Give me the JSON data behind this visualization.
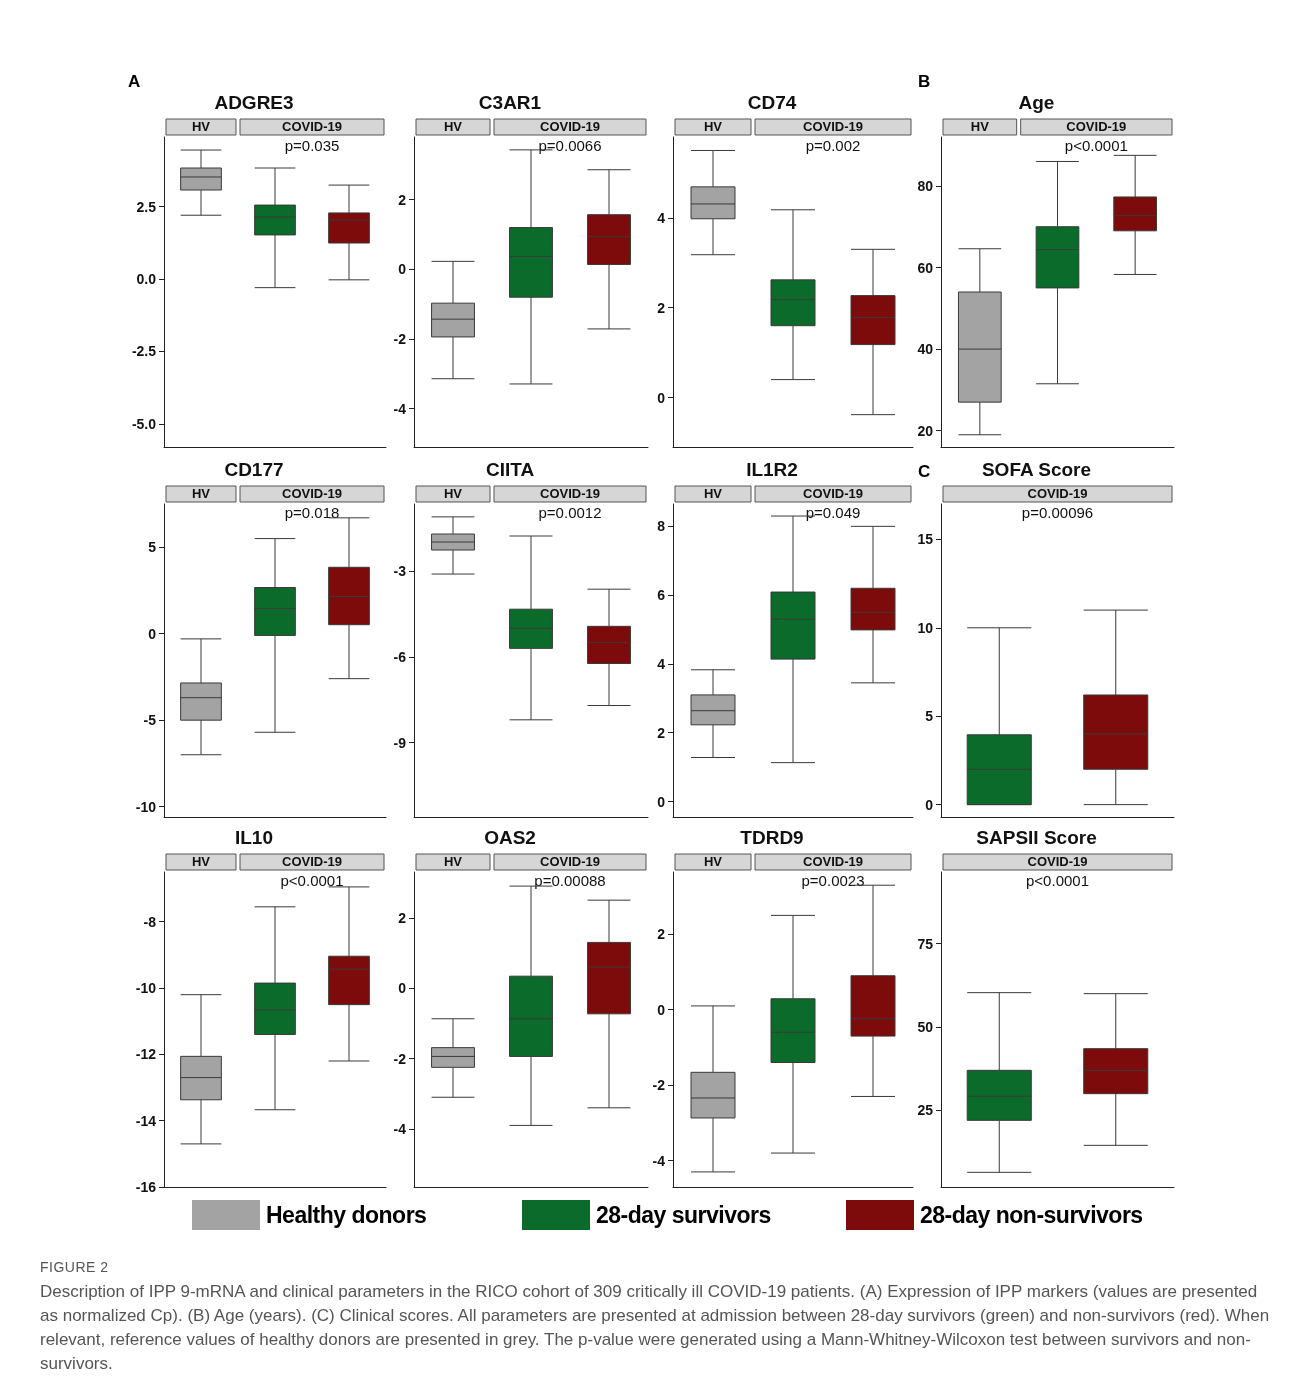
{
  "chart_data": [
    {
      "type": "box",
      "title": "ADGRE3",
      "subtitle": "p=0.035",
      "annotations": [
        "HV",
        "COVID-19"
      ],
      "categories": [
        null,
        null,
        null
      ],
      "tick_labels": "y",
      "legend": "bottom",
      "ylim": [
        -5.8,
        4.9
      ],
      "yticks": [
        {
          "value": -5,
          "label": "-5.0"
        },
        -2.5,
        {
          "value": 0,
          "label": "0.0"
        },
        2.5
      ],
      "series": [
        {
          "name": "Healthy donors",
          "color": "#a3a3a3",
          "boxes": [
            {
              "low": 2.2,
              "q1": 3.07,
              "median": 3.52,
              "q3": 3.83,
              "high": 4.45
            },
            null,
            null
          ]
        },
        {
          "name": "28-day survivors",
          "color": "#0b6b2b",
          "boxes": [
            null,
            {
              "low": -0.3,
              "q1": 1.52,
              "median": 2.14,
              "q3": 2.55,
              "high": 3.83
            },
            null
          ]
        },
        {
          "name": "28-day non-survivors",
          "color": "#7d0b0b",
          "boxes": [
            null,
            null,
            {
              "low": -0.03,
              "q1": 1.24,
              "median": 2.03,
              "q3": 2.28,
              "high": 3.24
            }
          ]
        }
      ]
    },
    {
      "type": "box",
      "title": "C3AR1",
      "subtitle": "p=0.0066",
      "annotations": [
        "HV",
        "COVID-19"
      ],
      "categories": [
        null,
        null,
        null
      ],
      "tick_labels": "y",
      "ylim": [
        -5.1,
        3.8
      ],
      "yticks": [
        -4,
        -2,
        0,
        2
      ],
      "series": [
        {
          "color": "#a3a3a3",
          "boxes": [
            {
              "low": -3.14,
              "q1": -1.94,
              "median": -1.43,
              "q3": -0.97,
              "high": 0.23
            },
            null,
            null
          ]
        },
        {
          "color": "#0b6b2b",
          "boxes": [
            null,
            {
              "low": -3.29,
              "q1": -0.8,
              "median": 0.37,
              "q3": 1.2,
              "high": 3.43
            },
            null
          ]
        },
        {
          "color": "#7d0b0b",
          "boxes": [
            null,
            null,
            {
              "low": -1.71,
              "q1": 0.14,
              "median": 0.94,
              "q3": 1.57,
              "high": 2.86
            }
          ]
        }
      ]
    },
    {
      "type": "box",
      "title": "CD74",
      "subtitle": "p=0.002",
      "annotations": [
        "HV",
        "COVID-19"
      ],
      "categories": [
        null,
        null,
        null
      ],
      "tick_labels": "y",
      "ylim": [
        -1.1,
        5.8
      ],
      "yticks": [
        0,
        2,
        4
      ],
      "series": [
        {
          "color": "#a3a3a3",
          "boxes": [
            {
              "low": 3.18,
              "q1": 3.98,
              "median": 4.31,
              "q3": 4.69,
              "high": 5.5
            },
            null,
            null
          ]
        },
        {
          "color": "#0b6b2b",
          "boxes": [
            null,
            {
              "low": 0.4,
              "q1": 1.6,
              "median": 2.18,
              "q3": 2.62,
              "high": 4.18
            },
            null
          ]
        },
        {
          "color": "#7d0b0b",
          "boxes": [
            null,
            null,
            {
              "low": -0.38,
              "q1": 1.18,
              "median": 1.78,
              "q3": 2.27,
              "high": 3.3
            }
          ]
        }
      ]
    },
    {
      "type": "box",
      "title": "Age",
      "subtitle": "p<0.0001",
      "annotations": [
        "HV",
        "COVID-19"
      ],
      "categories": [
        null,
        null,
        null
      ],
      "tick_labels": "y",
      "ylim": [
        16,
        92
      ],
      "yticks": [
        20,
        40,
        60,
        80
      ],
      "series": [
        {
          "color": "#a3a3a3",
          "boxes": [
            {
              "low": 19,
              "q1": 27,
              "median": 40,
              "q3": 54,
              "high": 64.6
            },
            null,
            null
          ]
        },
        {
          "color": "#0b6b2b",
          "boxes": [
            null,
            {
              "low": 31.5,
              "q1": 55,
              "median": 64.4,
              "q3": 70,
              "high": 86
            },
            null
          ]
        },
        {
          "color": "#7d0b0b",
          "boxes": [
            null,
            null,
            {
              "low": 58.3,
              "q1": 69,
              "median": 72.7,
              "q3": 77.3,
              "high": 87.5
            }
          ]
        }
      ]
    },
    {
      "type": "box",
      "title": "CD177",
      "subtitle": "p=0.018",
      "annotations": [
        "HV",
        "COVID-19"
      ],
      "categories": [
        null,
        null,
        null
      ],
      "tick_labels": "y",
      "ylim": [
        -10.6,
        7.5
      ],
      "yticks": [
        -10,
        -5,
        0,
        5
      ],
      "series": [
        {
          "color": "#a3a3a3",
          "boxes": [
            {
              "low": -7,
              "q1": -5,
              "median": -3.7,
              "q3": -2.85,
              "high": -0.3
            },
            null,
            null
          ]
        },
        {
          "color": "#0b6b2b",
          "boxes": [
            null,
            {
              "low": -5.7,
              "q1": -0.1,
              "median": 1.45,
              "q3": 2.67,
              "high": 5.5
            },
            null
          ]
        },
        {
          "color": "#7d0b0b",
          "boxes": [
            null,
            null,
            {
              "low": -2.6,
              "q1": 0.52,
              "median": 2.15,
              "q3": 3.84,
              "high": 6.7
            }
          ]
        }
      ]
    },
    {
      "type": "box",
      "title": "CIITA",
      "subtitle": "p=0.0012",
      "annotations": [
        "HV",
        "COVID-19"
      ],
      "categories": [
        null,
        null,
        null
      ],
      "tick_labels": "y",
      "ylim": [
        -11.6,
        -0.65
      ],
      "yticks": [
        -9,
        -6,
        -3
      ],
      "series": [
        {
          "color": "#a3a3a3",
          "boxes": [
            {
              "low": -3.1,
              "q1": -2.26,
              "median": -1.98,
              "q3": -1.7,
              "high": -1.1
            },
            null,
            null
          ]
        },
        {
          "color": "#0b6b2b",
          "boxes": [
            null,
            {
              "low": -8.2,
              "q1": -5.7,
              "median": -5,
              "q3": -4.33,
              "high": -1.77
            },
            null
          ]
        },
        {
          "color": "#7d0b0b",
          "boxes": [
            null,
            null,
            {
              "low": -7.7,
              "q1": -6.23,
              "median": -5.5,
              "q3": -4.93,
              "high": -3.63
            }
          ]
        }
      ]
    },
    {
      "type": "box",
      "title": "IL1R2",
      "subtitle": "p=0.049",
      "annotations": [
        "HV",
        "COVID-19"
      ],
      "categories": [
        null,
        null,
        null
      ],
      "tick_labels": "y",
      "ylim": [
        -0.45,
        8.65
      ],
      "yticks": [
        0,
        2,
        4,
        6,
        8
      ],
      "series": [
        {
          "color": "#a3a3a3",
          "boxes": [
            {
              "low": 1.28,
              "q1": 2.23,
              "median": 2.64,
              "q3": 3.1,
              "high": 3.83
            },
            null,
            null
          ]
        },
        {
          "color": "#0b6b2b",
          "boxes": [
            null,
            {
              "low": 1.13,
              "q1": 4.14,
              "median": 5.3,
              "q3": 6.09,
              "high": 8.3
            },
            null
          ]
        },
        {
          "color": "#7d0b0b",
          "boxes": [
            null,
            null,
            {
              "low": 3.45,
              "q1": 4.99,
              "median": 5.5,
              "q3": 6.2,
              "high": 8
            }
          ]
        }
      ]
    },
    {
      "type": "box",
      "title": "SOFA Score",
      "subtitle": "p=0.00096",
      "annotations": [
        "COVID-19"
      ],
      "categories": [
        null,
        null
      ],
      "tick_labels": "y",
      "ylim": [
        -0.7,
        17
      ],
      "yticks": [
        0,
        5,
        10,
        15
      ],
      "series": [
        {
          "color": "#0b6b2b",
          "boxes": [
            {
              "low": 0,
              "q1": 0,
              "median": 2,
              "q3": 3.95,
              "high": 10
            },
            null
          ]
        },
        {
          "color": "#7d0b0b",
          "boxes": [
            null,
            {
              "low": 0,
              "q1": 2,
              "median": 4,
              "q3": 6.2,
              "high": 11
            }
          ]
        }
      ]
    },
    {
      "type": "box",
      "title": "IL10",
      "subtitle": "p<0.0001",
      "annotations": [
        "HV",
        "COVID-19"
      ],
      "categories": [
        null,
        null,
        null
      ],
      "tick_labels": "y",
      "ylim": [
        -16,
        -6.5
      ],
      "yticks": [
        -16,
        -14,
        -12,
        -10,
        -8
      ],
      "series": [
        {
          "color": "#a3a3a3",
          "boxes": [
            {
              "low": -14.7,
              "q1": -13.37,
              "median": -12.7,
              "q3": -12.06,
              "high": -10.2
            },
            null,
            null
          ]
        },
        {
          "color": "#0b6b2b",
          "boxes": [
            null,
            {
              "low": -13.67,
              "q1": -11.4,
              "median": -10.66,
              "q3": -9.85,
              "high": -7.55
            },
            null
          ]
        },
        {
          "color": "#7d0b0b",
          "boxes": [
            null,
            null,
            {
              "low": -12.2,
              "q1": -10.5,
              "median": -9.43,
              "q3": -9.04,
              "high": -6.95
            }
          ]
        }
      ]
    },
    {
      "type": "box",
      "title": "OAS2",
      "subtitle": "p=0.00088",
      "annotations": [
        "HV",
        "COVID-19"
      ],
      "categories": [
        null,
        null,
        null
      ],
      "tick_labels": "y",
      "ylim": [
        -5.65,
        3.3
      ],
      "yticks": [
        -4,
        -2,
        0,
        2
      ],
      "series": [
        {
          "color": "#a3a3a3",
          "boxes": [
            {
              "low": -3.1,
              "q1": -2.25,
              "median": -1.94,
              "q3": -1.69,
              "high": -0.87
            },
            null,
            null
          ]
        },
        {
          "color": "#0b6b2b",
          "boxes": [
            null,
            {
              "low": -3.9,
              "q1": -1.94,
              "median": -0.87,
              "q3": 0.34,
              "high": 2.9
            },
            null
          ]
        },
        {
          "color": "#7d0b0b",
          "boxes": [
            null,
            null,
            {
              "low": -3.4,
              "q1": -0.73,
              "median": 0.6,
              "q3": 1.3,
              "high": 2.5
            }
          ]
        }
      ]
    },
    {
      "type": "box",
      "title": "TDRD9",
      "subtitle": "p=0.0023",
      "annotations": [
        "HV",
        "COVID-19"
      ],
      "categories": [
        null,
        null,
        null
      ],
      "tick_labels": "y",
      "ylim": [
        -4.7,
        3.65
      ],
      "yticks": [
        -4,
        -2,
        0,
        2
      ],
      "series": [
        {
          "color": "#a3a3a3",
          "boxes": [
            {
              "low": -4.3,
              "q1": -2.87,
              "median": -2.34,
              "q3": -1.66,
              "high": 0.1
            },
            null,
            null
          ]
        },
        {
          "color": "#0b6b2b",
          "boxes": [
            null,
            {
              "low": -3.8,
              "q1": -1.4,
              "median": -0.6,
              "q3": 0.29,
              "high": 2.5
            },
            null
          ]
        },
        {
          "color": "#7d0b0b",
          "boxes": [
            null,
            null,
            {
              "low": -2.3,
              "q1": -0.7,
              "median": -0.24,
              "q3": 0.9,
              "high": 3.3
            }
          ]
        }
      ]
    },
    {
      "type": "box",
      "title": "SAPSII Score",
      "subtitle": "p<0.0001",
      "annotations": [
        "COVID-19"
      ],
      "categories": [
        null,
        null
      ],
      "tick_labels": "y",
      "ylim": [
        2,
        96.5
      ],
      "yticks": [
        25,
        50,
        75
      ],
      "series": [
        {
          "color": "#0b6b2b",
          "boxes": [
            {
              "low": 6.4,
              "q1": 22,
              "median": 29.2,
              "q3": 37,
              "high": 60.3
            },
            null
          ]
        },
        {
          "color": "#7d0b0b",
          "boxes": [
            null,
            {
              "low": 14.5,
              "q1": 30,
              "median": 37,
              "q3": 43.5,
              "high": 60
            }
          ]
        }
      ]
    },
    {
      "type": "other",
      "annotations": [
        "A",
        "B",
        "C",
        "FIGURE 2",
        "Description of IPP 9-mRNA and clinical parameters in the RICO cohort of 309 critically ill COVID-19 patients. (A) Expression of IPP markers (values are presented as normalized Cp). (B) Age (years). (C) Clinical scores. All parameters are presented at admission between 28-day survivors (green) and non-survivors (red). When relevant, reference values of healthy donors are presented in grey. The p-value were generated using a Mann-Whitney-Wilcoxon test between survivors and non-survivors."
      ]
    }
  ]
}
